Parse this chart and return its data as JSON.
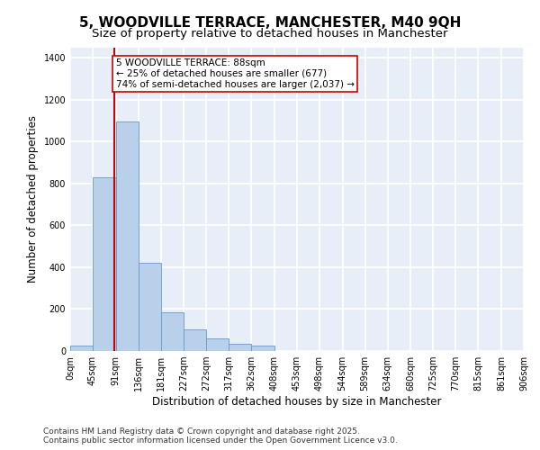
{
  "title_line1": "5, WOODVILLE TERRACE, MANCHESTER, M40 9QH",
  "title_line2": "Size of property relative to detached houses in Manchester",
  "xlabel": "Distribution of detached houses by size in Manchester",
  "ylabel": "Number of detached properties",
  "bar_color": "#b8d0ea",
  "bar_edge_color": "#6699cc",
  "background_color": "#e8eef8",
  "grid_color": "#ffffff",
  "bin_edges": [
    0,
    45,
    91,
    136,
    181,
    227,
    272,
    317,
    362,
    408,
    453,
    498,
    544,
    589,
    634,
    680,
    725,
    770,
    815,
    861,
    906
  ],
  "bin_labels": [
    "0sqm",
    "45sqm",
    "91sqm",
    "136sqm",
    "181sqm",
    "227sqm",
    "272sqm",
    "317sqm",
    "362sqm",
    "408sqm",
    "453sqm",
    "498sqm",
    "544sqm",
    "589sqm",
    "634sqm",
    "680sqm",
    "725sqm",
    "770sqm",
    "815sqm",
    "861sqm",
    "906sqm"
  ],
  "counts": [
    25,
    830,
    1095,
    420,
    185,
    105,
    60,
    35,
    25,
    0,
    0,
    0,
    0,
    0,
    0,
    0,
    0,
    0,
    0,
    0
  ],
  "ylim": [
    0,
    1450
  ],
  "yticks": [
    0,
    200,
    400,
    600,
    800,
    1000,
    1200,
    1400
  ],
  "vline_x": 88,
  "vline_color": "#cc0000",
  "annotation_text": "5 WOODVILLE TERRACE: 88sqm\n← 25% of detached houses are smaller (677)\n74% of semi-detached houses are larger (2,037) →",
  "annotation_box_color": "white",
  "annotation_box_edge": "#cc0000",
  "footer_line1": "Contains HM Land Registry data © Crown copyright and database right 2025.",
  "footer_line2": "Contains public sector information licensed under the Open Government Licence v3.0.",
  "title_fontsize": 11,
  "subtitle_fontsize": 9.5,
  "axis_label_fontsize": 8.5,
  "tick_fontsize": 7,
  "annotation_fontsize": 7.5,
  "footer_fontsize": 6.5
}
